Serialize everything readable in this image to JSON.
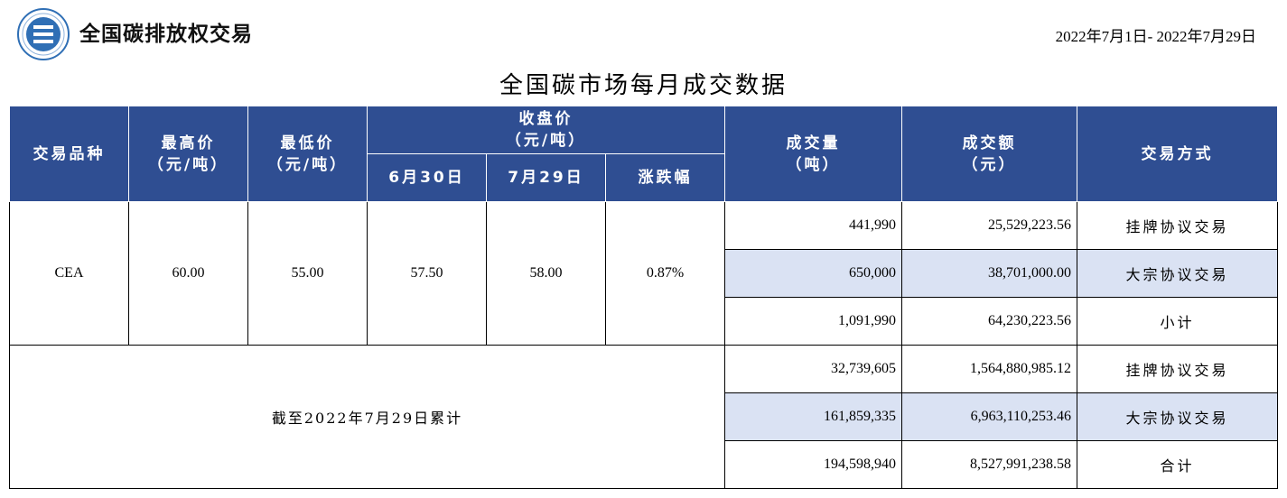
{
  "header": {
    "brand": "全国碳排放权交易",
    "date_range": "2022年7月1日- 2022年7月29日",
    "title": "全国碳市场每月成交数据"
  },
  "columns": {
    "product": "交易品种",
    "high_price": "最高价",
    "low_price": "最低价",
    "unit_yuan_ton": "（元/吨）",
    "close_price": "收盘价",
    "close_unit": "（元/吨）",
    "date1": "6月30日",
    "date2": "7月29日",
    "change": "涨跌幅",
    "volume": "成交量",
    "volume_unit": "（吨）",
    "amount": "成交额",
    "amount_unit": "（元）",
    "method": "交易方式"
  },
  "monthly": {
    "product": "CEA",
    "high": "60.00",
    "low": "55.00",
    "close_0630": "57.50",
    "close_0729": "58.00",
    "change": "0.87%",
    "rows": [
      {
        "volume": "441,990",
        "amount": "25,529,223.56",
        "method": "挂牌协议交易"
      },
      {
        "volume": "650,000",
        "amount": "38,701,000.00",
        "method": "大宗协议交易"
      },
      {
        "volume": "1,091,990",
        "amount": "64,230,223.56",
        "method": "小计"
      }
    ]
  },
  "cumulative": {
    "label": "截至2022年7月29日累计",
    "rows": [
      {
        "volume": "32,739,605",
        "amount": "1,564,880,985.12",
        "method": "挂牌协议交易"
      },
      {
        "volume": "161,859,335",
        "amount": "6,963,110,253.46",
        "method": "大宗协议交易"
      },
      {
        "volume": "194,598,940",
        "amount": "8,527,991,238.58",
        "method": "合计"
      }
    ]
  },
  "colors": {
    "header_bg": "#2f4e92",
    "highlight_bg": "#dae2f3",
    "logo_blue": "#2f6fb5"
  },
  "icons": {
    "logo": "exchange-emblem-icon"
  }
}
